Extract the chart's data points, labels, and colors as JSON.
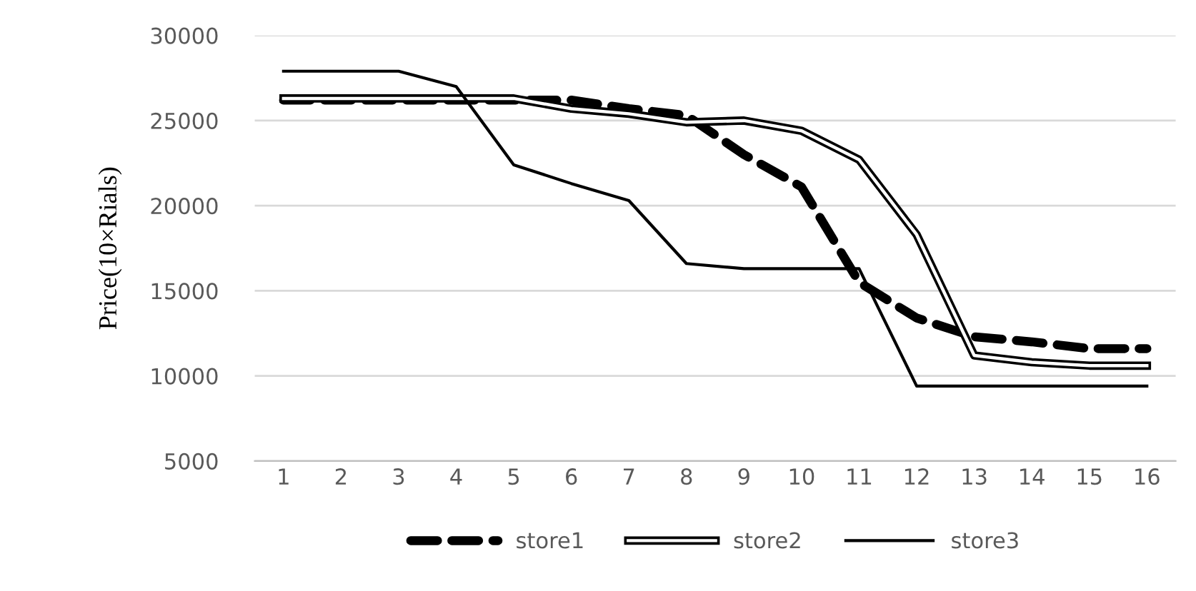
{
  "chart_data": {
    "type": "line",
    "ylabel": "Price(10×Rials)",
    "categories": [
      "1",
      "2",
      "3",
      "4",
      "5",
      "6",
      "7",
      "8",
      "9",
      "10",
      "11",
      "12",
      "13",
      "14",
      "15",
      "16"
    ],
    "ylim": [
      5000,
      30000
    ],
    "yticks": [
      5000,
      10000,
      15000,
      20000,
      25000,
      30000
    ],
    "grid": "y",
    "legend": "bottom",
    "series": [
      {
        "name": "store1",
        "color": "#000000",
        "line_style": "dashed",
        "values": [
          26200,
          26200,
          26200,
          26200,
          26200,
          26200,
          25700,
          25300,
          23000,
          21100,
          15500,
          13400,
          12300,
          12000,
          11600,
          11600
        ]
      },
      {
        "name": "store2",
        "color": "#000000",
        "line_style": "solid",
        "values": [
          26300,
          26300,
          26300,
          26300,
          26300,
          25700,
          25400,
          24900,
          25000,
          24400,
          22700,
          18300,
          11200,
          10800,
          10600,
          10600
        ]
      },
      {
        "name": "store3",
        "color": "#000000",
        "line_style": "solid",
        "values": [
          27900,
          27900,
          27900,
          27000,
          22400,
          21300,
          20300,
          16600,
          16300,
          16300,
          16300,
          9400,
          9400,
          9400,
          9400,
          9400
        ]
      }
    ]
  }
}
